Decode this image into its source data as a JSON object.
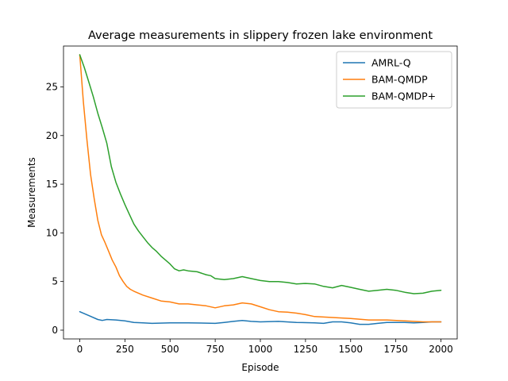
{
  "chart_data": {
    "type": "line",
    "title": "Average measurements in  slippery frozen lake environment",
    "xlabel": "Episode",
    "ylabel": "Measurements",
    "xlim": [
      -90,
      2090
    ],
    "ylim": [
      -0.9,
      29.2
    ],
    "xticks": [
      0,
      250,
      500,
      750,
      1000,
      1250,
      1500,
      1750,
      2000
    ],
    "yticks": [
      0,
      5,
      10,
      15,
      20,
      25
    ],
    "grid": false,
    "legend_position": "top-right",
    "series": [
      {
        "name": "AMRL-Q",
        "color": "#1f77b4",
        "x": [
          0,
          50,
          100,
          125,
          150,
          200,
          250,
          300,
          350,
          400,
          500,
          600,
          700,
          750,
          800,
          850,
          900,
          950,
          1000,
          1100,
          1200,
          1300,
          1350,
          1400,
          1450,
          1500,
          1550,
          1600,
          1650,
          1700,
          1750,
          1800,
          1850,
          1900,
          1950,
          2000
        ],
        "y": [
          1.9,
          1.5,
          1.1,
          1.0,
          1.1,
          1.05,
          0.95,
          0.8,
          0.75,
          0.7,
          0.75,
          0.75,
          0.72,
          0.7,
          0.8,
          0.9,
          1.0,
          0.9,
          0.85,
          0.9,
          0.8,
          0.75,
          0.7,
          0.85,
          0.85,
          0.75,
          0.6,
          0.6,
          0.7,
          0.8,
          0.8,
          0.8,
          0.75,
          0.8,
          0.85,
          0.85
        ]
      },
      {
        "name": "BAM-QMDP",
        "color": "#ff7f0e",
        "x": [
          0,
          20,
          40,
          60,
          80,
          100,
          120,
          140,
          160,
          180,
          200,
          220,
          240,
          260,
          280,
          300,
          350,
          400,
          450,
          500,
          550,
          600,
          650,
          700,
          750,
          800,
          850,
          900,
          950,
          1000,
          1050,
          1100,
          1150,
          1200,
          1250,
          1300,
          1350,
          1400,
          1500,
          1600,
          1700,
          1800,
          1900,
          2000
        ],
        "y": [
          28.3,
          23.5,
          19.5,
          16.0,
          13.5,
          11.3,
          9.8,
          9.0,
          8.1,
          7.2,
          6.5,
          5.6,
          5.0,
          4.5,
          4.2,
          4.0,
          3.6,
          3.3,
          3.0,
          2.9,
          2.7,
          2.7,
          2.6,
          2.5,
          2.3,
          2.5,
          2.6,
          2.8,
          2.7,
          2.4,
          2.1,
          1.9,
          1.85,
          1.75,
          1.6,
          1.4,
          1.35,
          1.3,
          1.2,
          1.05,
          1.05,
          0.95,
          0.85,
          0.85
        ]
      },
      {
        "name": "BAM-QMDP+",
        "color": "#2ca02c",
        "x": [
          0,
          25,
          50,
          75,
          100,
          125,
          150,
          175,
          200,
          225,
          250,
          275,
          300,
          325,
          350,
          375,
          400,
          425,
          450,
          475,
          500,
          525,
          550,
          575,
          600,
          650,
          700,
          725,
          750,
          800,
          850,
          900,
          950,
          1000,
          1050,
          1100,
          1150,
          1200,
          1250,
          1300,
          1350,
          1400,
          1450,
          1500,
          1550,
          1600,
          1650,
          1700,
          1750,
          1800,
          1850,
          1900,
          1950,
          2000
        ],
        "y": [
          28.3,
          27.0,
          25.5,
          24.0,
          22.3,
          20.8,
          19.2,
          16.8,
          15.2,
          14.0,
          12.9,
          11.9,
          10.9,
          10.2,
          9.6,
          9.0,
          8.5,
          8.1,
          7.6,
          7.2,
          6.8,
          6.3,
          6.1,
          6.2,
          6.1,
          6.0,
          5.7,
          5.6,
          5.3,
          5.2,
          5.3,
          5.5,
          5.3,
          5.1,
          5.0,
          5.0,
          4.9,
          4.75,
          4.8,
          4.75,
          4.5,
          4.35,
          4.6,
          4.4,
          4.2,
          4.0,
          4.1,
          4.2,
          4.1,
          3.9,
          3.75,
          3.8,
          4.0,
          4.1
        ]
      }
    ]
  }
}
